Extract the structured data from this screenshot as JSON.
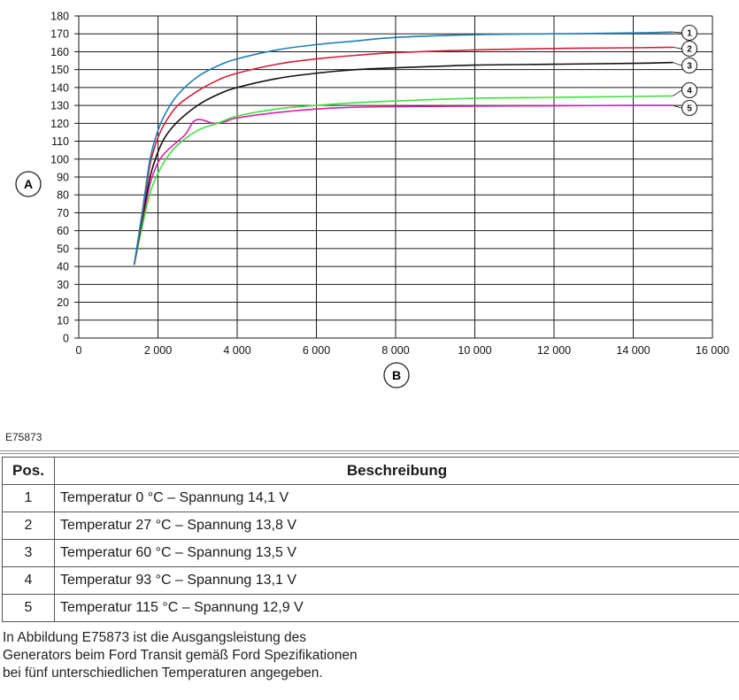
{
  "figure_id": "E75873",
  "chart_data": {
    "type": "line",
    "xlabel": "B",
    "ylabel": "A",
    "xlim": [
      0,
      16000
    ],
    "ylim": [
      0,
      180
    ],
    "grid": true,
    "x_ticks": [
      0,
      2000,
      4000,
      6000,
      8000,
      10000,
      12000,
      14000,
      16000
    ],
    "x_tick_labels": [
      "0",
      "2 000",
      "4 000",
      "6 000",
      "8 000",
      "10 000",
      "12 000",
      "14 000",
      "16 000"
    ],
    "y_ticks": [
      0,
      10,
      20,
      30,
      40,
      50,
      60,
      70,
      80,
      90,
      100,
      110,
      120,
      130,
      140,
      150,
      160,
      170,
      180
    ],
    "y_tick_labels": [
      "0",
      "10",
      "20",
      "30",
      "40",
      "50",
      "60",
      "70",
      "80",
      "90",
      "100",
      "110",
      "120",
      "130",
      "140",
      "150",
      "160",
      "170",
      "180"
    ],
    "series": [
      {
        "name": "1",
        "color": "#1f7db8",
        "x": [
          1400,
          1600,
          1800,
          2000,
          2200,
          2500,
          3000,
          3500,
          4000,
          5000,
          6000,
          7000,
          8000,
          10000,
          12000,
          14000,
          15000
        ],
        "y": [
          41,
          70,
          100,
          116,
          126,
          136,
          146,
          152,
          156,
          161,
          164,
          166,
          168,
          169.5,
          170,
          170.5,
          171
        ]
      },
      {
        "name": "2",
        "color": "#d0203a",
        "x": [
          1400,
          1600,
          1800,
          2000,
          2200,
          2500,
          3000,
          3500,
          4000,
          5000,
          6000,
          7000,
          8000,
          10000,
          12000,
          14000,
          15000
        ],
        "y": [
          41,
          68,
          97,
          112,
          121,
          130,
          138,
          144,
          148,
          153,
          156,
          158,
          159.5,
          161,
          161.8,
          162.2,
          162.5
        ]
      },
      {
        "name": "3",
        "color": "#111111",
        "x": [
          1400,
          1600,
          1800,
          2000,
          2200,
          2500,
          3000,
          3500,
          4000,
          5000,
          6000,
          7000,
          8000,
          10000,
          12000,
          14000,
          15000
        ],
        "y": [
          41,
          66,
          90,
          104,
          113,
          121,
          130,
          136,
          140,
          145,
          148,
          150,
          151,
          152.5,
          153,
          153.5,
          154
        ]
      },
      {
        "name": "4",
        "color": "#3ee03e",
        "x": [
          1400,
          1600,
          1800,
          2000,
          2200,
          2500,
          3000,
          3500,
          4000,
          5000,
          6000,
          7000,
          8000,
          10000,
          12000,
          14000,
          15000
        ],
        "y": [
          41,
          62,
          81,
          92,
          100,
          108,
          116,
          120,
          124,
          128,
          130,
          131.5,
          132.5,
          134,
          134.5,
          135,
          135.3
        ]
      },
      {
        "name": "5",
        "color": "#d61ea8",
        "x": [
          1400,
          1600,
          1800,
          2000,
          2200,
          2500,
          2700,
          2900,
          3100,
          3400,
          3700,
          4000,
          5000,
          6000,
          7000,
          8000,
          10000,
          12000,
          14000,
          15000
        ],
        "y": [
          41,
          64,
          86,
          98,
          104,
          110,
          114,
          121,
          122,
          120,
          121,
          123,
          126,
          128,
          129,
          129.3,
          129.6,
          129.8,
          130,
          130
        ]
      }
    ]
  },
  "table": {
    "headers": [
      "Pos.",
      "Beschreibung"
    ],
    "rows": [
      {
        "pos": "1",
        "desc": "Temperatur 0 °C – Spannung 14,1 V"
      },
      {
        "pos": "2",
        "desc": "Temperatur 27 °C – Spannung 13,8 V"
      },
      {
        "pos": "3",
        "desc": "Temperatur 60 °C – Spannung 13,5 V"
      },
      {
        "pos": "4",
        "desc": "Temperatur 93 °C – Spannung 13,1 V"
      },
      {
        "pos": "5",
        "desc": "Temperatur 115 °C – Spannung 12,9 V"
      }
    ]
  },
  "caption": "In Abbildung E75873 ist die Ausgangsleistung des Generators beim Ford Transit gemäß Ford Spezifikationen bei fünf unterschiedlichen Temperaturen angegeben."
}
